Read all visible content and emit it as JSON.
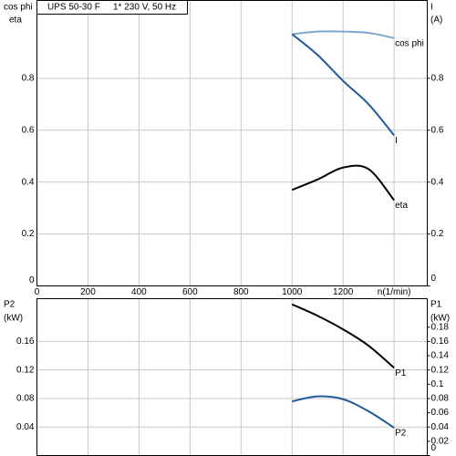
{
  "chart_data": [
    {
      "type": "line",
      "title": "UPS 50-30 F",
      "subtitle": "1* 230 V, 50 Hz",
      "y_label": [
        "cos phi",
        "eta"
      ],
      "y2_label": [
        "I",
        "(A)"
      ],
      "x": [
        1000,
        1100,
        1200,
        1300,
        1400
      ],
      "xlim": [
        0,
        1530
      ],
      "xticks": [
        0,
        200,
        400,
        600,
        800,
        1000,
        1200,
        {
          "value": 1400,
          "label": "n(1/min)"
        }
      ],
      "ylim": [
        0,
        1.1
      ],
      "yticks": [
        0,
        0.2,
        0.4,
        0.6,
        0.8
      ],
      "y2lim": [
        0,
        1.1
      ],
      "y2ticks": [
        0,
        0.2,
        0.4,
        0.6,
        0.8
      ],
      "grid": true,
      "series": [
        {
          "name": "cos phi",
          "color": "#7fa6cc",
          "values": [
            0.97,
            0.98,
            0.98,
            0.975,
            0.955
          ]
        },
        {
          "name": "I",
          "color": "#1f5a9a",
          "axis": "y2",
          "values": [
            0.97,
            0.89,
            0.79,
            0.7,
            0.58
          ]
        },
        {
          "name": "eta",
          "color": "#000000",
          "values": [
            0.37,
            0.41,
            0.456,
            0.45,
            0.33
          ]
        }
      ]
    },
    {
      "type": "line",
      "y_label": [
        "P2",
        "(kW)"
      ],
      "y2_label": [
        "P1",
        "(kW)"
      ],
      "x": [
        1000,
        1100,
        1200,
        1300,
        1400
      ],
      "xlim": [
        0,
        1530
      ],
      "xticks": [
        0,
        200,
        400,
        600,
        800,
        1000,
        1200,
        1400
      ],
      "show_xtick_labels": false,
      "ylim": [
        0,
        0.22
      ],
      "yticks": [
        0.04,
        0.08,
        0.12,
        0.16
      ],
      "y2lim": [
        0,
        0.22
      ],
      "y2ticks": [
        0,
        0.02,
        0.04,
        0.06,
        0.08,
        0.1,
        0.12,
        0.14,
        0.16,
        0.18
      ],
      "grid": true,
      "series": [
        {
          "name": "P1",
          "color": "#000000",
          "axis": "y2",
          "values": [
            0.212,
            0.196,
            0.177,
            0.154,
            0.123
          ]
        },
        {
          "name": "P2",
          "color": "#1f5a9a",
          "values": [
            0.076,
            0.083,
            0.079,
            0.062,
            0.039
          ]
        }
      ]
    }
  ]
}
